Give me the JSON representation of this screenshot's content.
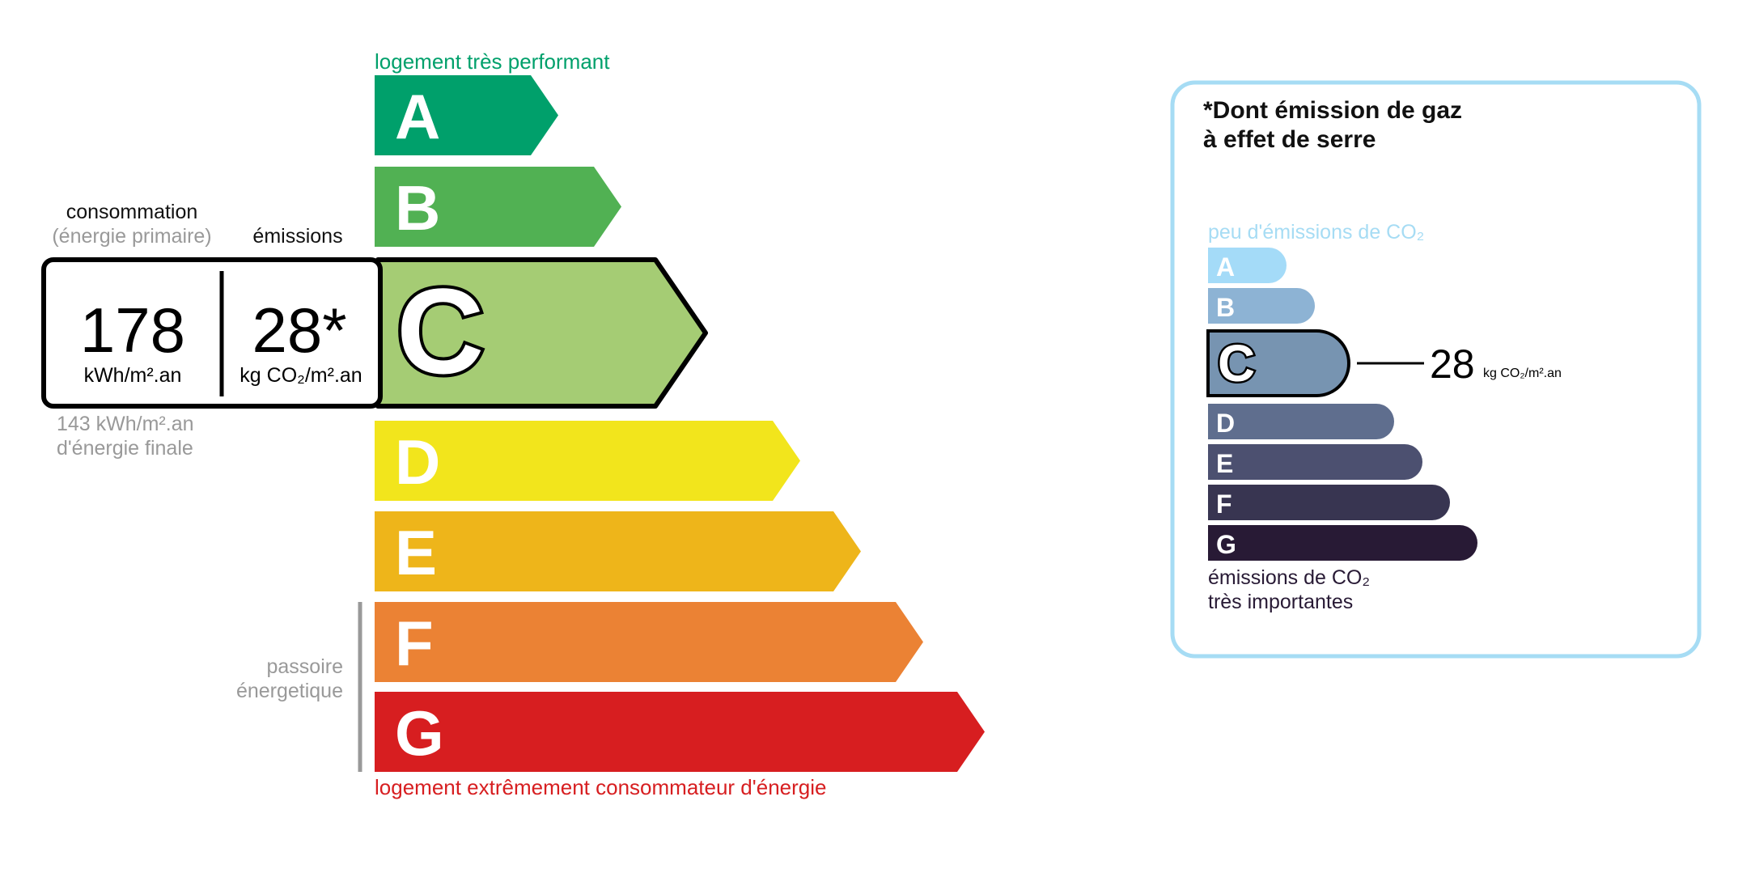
{
  "energy": {
    "top_label": "logement très performant",
    "bottom_label": "logement extrêmement consommateur d'énergie",
    "top_label_color": "#00a06b",
    "bottom_label_color": "#d71e20",
    "classes": [
      {
        "letter": "A",
        "color": "#00a06b"
      },
      {
        "letter": "B",
        "color": "#51b153"
      },
      {
        "letter": "C",
        "color": "#a5cc74"
      },
      {
        "letter": "D",
        "color": "#f2e51c"
      },
      {
        "letter": "E",
        "color": "#eeb51a"
      },
      {
        "letter": "F",
        "color": "#eb8234"
      },
      {
        "letter": "G",
        "color": "#d71e20"
      }
    ],
    "current_class": "C",
    "consumption_label": "consommation",
    "consumption_sublabel": "(énergie primaire)",
    "emissions_label": "émissions",
    "consumption_value": "178",
    "consumption_unit": "kWh/m².an",
    "emissions_value": "28*",
    "emissions_unit": "kg CO₂/m².an",
    "final_energy_value": "143 kWh/m².an",
    "final_energy_label": "d'énergie finale",
    "passoire_line1": "passoire",
    "passoire_line2": "énergetique"
  },
  "ges": {
    "title_line1": "*Dont émission de gaz",
    "title_line2": "à effet de serre",
    "top_label": "peu d'émissions de CO₂",
    "bottom_label_line1": "émissions de CO₂",
    "bottom_label_line2": "très importantes",
    "border_color": "#a6dcf4",
    "classes": [
      {
        "letter": "A",
        "color": "#a4dbf8"
      },
      {
        "letter": "B",
        "color": "#8db3d4"
      },
      {
        "letter": "C",
        "color": "#7794b1"
      },
      {
        "letter": "D",
        "color": "#5f6e8e"
      },
      {
        "letter": "E",
        "color": "#4c5070"
      },
      {
        "letter": "F",
        "color": "#383551"
      },
      {
        "letter": "G",
        "color": "#281a35"
      }
    ],
    "current_class": "C",
    "value": "28",
    "unit": "kg CO₂/m².an"
  }
}
